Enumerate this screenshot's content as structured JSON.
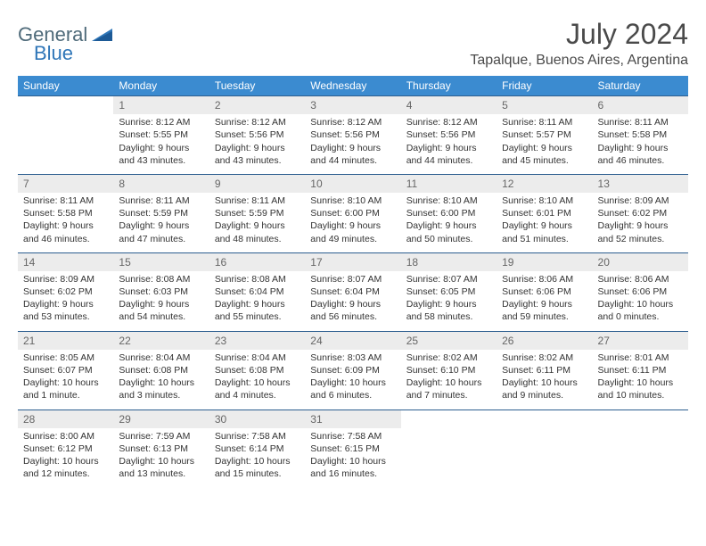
{
  "brand": {
    "general": "General",
    "blue": "Blue"
  },
  "header": {
    "month_title": "July 2024",
    "location": "Tapalque, Buenos Aires, Argentina"
  },
  "colors": {
    "header_bg": "#3b8bd0",
    "header_text": "#ffffff",
    "row_border": "#2c5e8f",
    "daynum_bg": "#ececec",
    "daynum_text": "#666666",
    "body_text": "#333333",
    "logo_general": "#4f6b7a",
    "logo_blue": "#2f76b8"
  },
  "day_names": [
    "Sunday",
    "Monday",
    "Tuesday",
    "Wednesday",
    "Thursday",
    "Friday",
    "Saturday"
  ],
  "weeks": [
    [
      {
        "n": "",
        "sr": "",
        "ss": "",
        "dl": ""
      },
      {
        "n": "1",
        "sr": "Sunrise: 8:12 AM",
        "ss": "Sunset: 5:55 PM",
        "dl": "Daylight: 9 hours and 43 minutes."
      },
      {
        "n": "2",
        "sr": "Sunrise: 8:12 AM",
        "ss": "Sunset: 5:56 PM",
        "dl": "Daylight: 9 hours and 43 minutes."
      },
      {
        "n": "3",
        "sr": "Sunrise: 8:12 AM",
        "ss": "Sunset: 5:56 PM",
        "dl": "Daylight: 9 hours and 44 minutes."
      },
      {
        "n": "4",
        "sr": "Sunrise: 8:12 AM",
        "ss": "Sunset: 5:56 PM",
        "dl": "Daylight: 9 hours and 44 minutes."
      },
      {
        "n": "5",
        "sr": "Sunrise: 8:11 AM",
        "ss": "Sunset: 5:57 PM",
        "dl": "Daylight: 9 hours and 45 minutes."
      },
      {
        "n": "6",
        "sr": "Sunrise: 8:11 AM",
        "ss": "Sunset: 5:58 PM",
        "dl": "Daylight: 9 hours and 46 minutes."
      }
    ],
    [
      {
        "n": "7",
        "sr": "Sunrise: 8:11 AM",
        "ss": "Sunset: 5:58 PM",
        "dl": "Daylight: 9 hours and 46 minutes."
      },
      {
        "n": "8",
        "sr": "Sunrise: 8:11 AM",
        "ss": "Sunset: 5:59 PM",
        "dl": "Daylight: 9 hours and 47 minutes."
      },
      {
        "n": "9",
        "sr": "Sunrise: 8:11 AM",
        "ss": "Sunset: 5:59 PM",
        "dl": "Daylight: 9 hours and 48 minutes."
      },
      {
        "n": "10",
        "sr": "Sunrise: 8:10 AM",
        "ss": "Sunset: 6:00 PM",
        "dl": "Daylight: 9 hours and 49 minutes."
      },
      {
        "n": "11",
        "sr": "Sunrise: 8:10 AM",
        "ss": "Sunset: 6:00 PM",
        "dl": "Daylight: 9 hours and 50 minutes."
      },
      {
        "n": "12",
        "sr": "Sunrise: 8:10 AM",
        "ss": "Sunset: 6:01 PM",
        "dl": "Daylight: 9 hours and 51 minutes."
      },
      {
        "n": "13",
        "sr": "Sunrise: 8:09 AM",
        "ss": "Sunset: 6:02 PM",
        "dl": "Daylight: 9 hours and 52 minutes."
      }
    ],
    [
      {
        "n": "14",
        "sr": "Sunrise: 8:09 AM",
        "ss": "Sunset: 6:02 PM",
        "dl": "Daylight: 9 hours and 53 minutes."
      },
      {
        "n": "15",
        "sr": "Sunrise: 8:08 AM",
        "ss": "Sunset: 6:03 PM",
        "dl": "Daylight: 9 hours and 54 minutes."
      },
      {
        "n": "16",
        "sr": "Sunrise: 8:08 AM",
        "ss": "Sunset: 6:04 PM",
        "dl": "Daylight: 9 hours and 55 minutes."
      },
      {
        "n": "17",
        "sr": "Sunrise: 8:07 AM",
        "ss": "Sunset: 6:04 PM",
        "dl": "Daylight: 9 hours and 56 minutes."
      },
      {
        "n": "18",
        "sr": "Sunrise: 8:07 AM",
        "ss": "Sunset: 6:05 PM",
        "dl": "Daylight: 9 hours and 58 minutes."
      },
      {
        "n": "19",
        "sr": "Sunrise: 8:06 AM",
        "ss": "Sunset: 6:06 PM",
        "dl": "Daylight: 9 hours and 59 minutes."
      },
      {
        "n": "20",
        "sr": "Sunrise: 8:06 AM",
        "ss": "Sunset: 6:06 PM",
        "dl": "Daylight: 10 hours and 0 minutes."
      }
    ],
    [
      {
        "n": "21",
        "sr": "Sunrise: 8:05 AM",
        "ss": "Sunset: 6:07 PM",
        "dl": "Daylight: 10 hours and 1 minute."
      },
      {
        "n": "22",
        "sr": "Sunrise: 8:04 AM",
        "ss": "Sunset: 6:08 PM",
        "dl": "Daylight: 10 hours and 3 minutes."
      },
      {
        "n": "23",
        "sr": "Sunrise: 8:04 AM",
        "ss": "Sunset: 6:08 PM",
        "dl": "Daylight: 10 hours and 4 minutes."
      },
      {
        "n": "24",
        "sr": "Sunrise: 8:03 AM",
        "ss": "Sunset: 6:09 PM",
        "dl": "Daylight: 10 hours and 6 minutes."
      },
      {
        "n": "25",
        "sr": "Sunrise: 8:02 AM",
        "ss": "Sunset: 6:10 PM",
        "dl": "Daylight: 10 hours and 7 minutes."
      },
      {
        "n": "26",
        "sr": "Sunrise: 8:02 AM",
        "ss": "Sunset: 6:11 PM",
        "dl": "Daylight: 10 hours and 9 minutes."
      },
      {
        "n": "27",
        "sr": "Sunrise: 8:01 AM",
        "ss": "Sunset: 6:11 PM",
        "dl": "Daylight: 10 hours and 10 minutes."
      }
    ],
    [
      {
        "n": "28",
        "sr": "Sunrise: 8:00 AM",
        "ss": "Sunset: 6:12 PM",
        "dl": "Daylight: 10 hours and 12 minutes."
      },
      {
        "n": "29",
        "sr": "Sunrise: 7:59 AM",
        "ss": "Sunset: 6:13 PM",
        "dl": "Daylight: 10 hours and 13 minutes."
      },
      {
        "n": "30",
        "sr": "Sunrise: 7:58 AM",
        "ss": "Sunset: 6:14 PM",
        "dl": "Daylight: 10 hours and 15 minutes."
      },
      {
        "n": "31",
        "sr": "Sunrise: 7:58 AM",
        "ss": "Sunset: 6:15 PM",
        "dl": "Daylight: 10 hours and 16 minutes."
      },
      {
        "n": "",
        "sr": "",
        "ss": "",
        "dl": ""
      },
      {
        "n": "",
        "sr": "",
        "ss": "",
        "dl": ""
      },
      {
        "n": "",
        "sr": "",
        "ss": "",
        "dl": ""
      }
    ]
  ]
}
